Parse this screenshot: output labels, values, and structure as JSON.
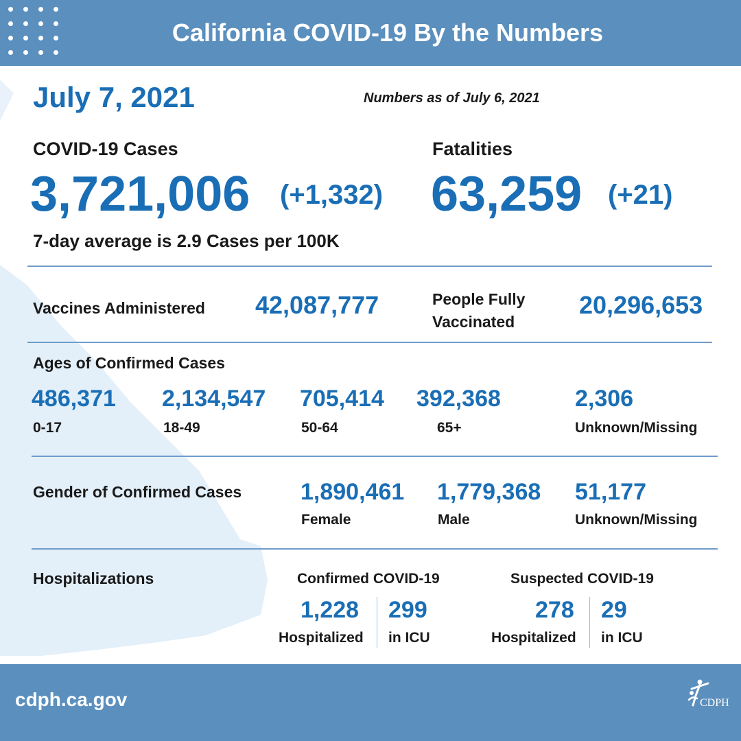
{
  "header": {
    "title": "California COVID-19 By the Numbers"
  },
  "date": "July 7, 2021",
  "as_of": "Numbers as of July 6, 2021",
  "cases": {
    "label": "COVID-19 Cases",
    "total": "3,721,006",
    "change": "(+1,332)",
    "average": "7-day average is 2.9 Cases per 100K"
  },
  "fatalities": {
    "label": "Fatalities",
    "total": "63,259",
    "change": "(+21)"
  },
  "vaccines": {
    "label": "Vaccines Administered",
    "value": "42,087,777",
    "fully_label": "People Fully Vaccinated",
    "fully_line1": "People Fully",
    "fully_line2": "Vaccinated",
    "fully_value": "20,296,653"
  },
  "ages": {
    "label": "Ages of Confirmed Cases",
    "groups": [
      {
        "value": "486,371",
        "label": "0-17"
      },
      {
        "value": "2,134,547",
        "label": "18-49"
      },
      {
        "value": "705,414",
        "label": "50-64"
      },
      {
        "value": "392,368",
        "label": "65+"
      },
      {
        "value": "2,306",
        "label": "Unknown/Missing"
      }
    ]
  },
  "gender": {
    "label": "Gender of Confirmed Cases",
    "groups": [
      {
        "value": "1,890,461",
        "label": "Female"
      },
      {
        "value": "1,779,368",
        "label": "Male"
      },
      {
        "value": "51,177",
        "label": "Unknown/Missing"
      }
    ]
  },
  "hospitalizations": {
    "label": "Hospitalizations",
    "confirmed": {
      "title": "Confirmed COVID-19",
      "hospitalized": "1,228",
      "hospitalized_label": "Hospitalized",
      "icu": "299",
      "icu_label": "in ICU"
    },
    "suspected": {
      "title": "Suspected COVID-19",
      "hospitalized": "278",
      "hospitalized_label": "Hospitalized",
      "icu": "29",
      "icu_label": "in ICU"
    }
  },
  "footer": {
    "url": "cdph.ca.gov",
    "logo_text": "CDPH"
  },
  "colors": {
    "header": "#5b8fbd",
    "accent": "#1a6eb5",
    "rule": "#6e9ccb",
    "map": "#e3eff9"
  }
}
